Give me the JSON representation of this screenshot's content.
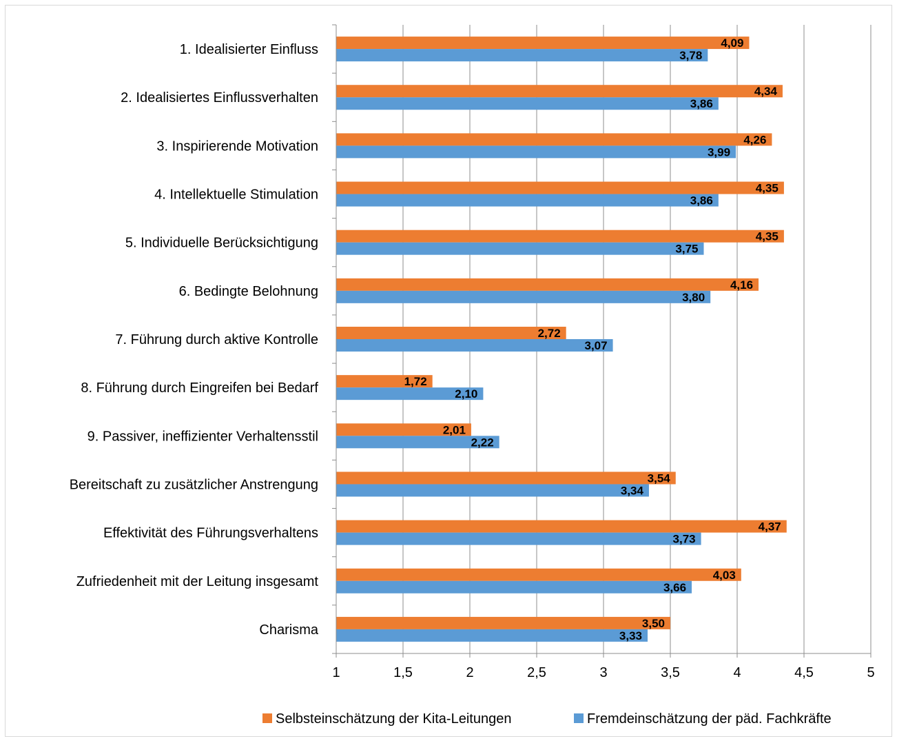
{
  "chart_data": {
    "type": "bar",
    "orientation": "horizontal",
    "categories": [
      "1. Idealisierter Einfluss",
      "2. Idealisiertes Einflussverhalten",
      "3. Inspirierende Motivation",
      "4. Intellektuelle Stimulation",
      "5. Individuelle Berücksichtigung",
      "6. Bedingte Belohnung",
      "7. Führung durch aktive Kontrolle",
      "8. Führung durch Eingreifen bei Bedarf",
      "9. Passiver, ineffizienter Verhaltensstil",
      "Bereitschaft zu zusätzlicher Anstrengung",
      "Effektivität des Führungsverhaltens",
      "Zufriedenheit mit der Leitung insgesamt",
      "Charisma"
    ],
    "series": [
      {
        "name": "Selbsteinschätzung der Kita-Leitungen",
        "color": "#ed7d31",
        "values": [
          4.09,
          4.34,
          4.26,
          4.35,
          4.35,
          4.16,
          2.72,
          1.72,
          2.01,
          3.54,
          4.37,
          4.03,
          3.5
        ],
        "labels": [
          "4,09",
          "4,34",
          "4,26",
          "4,35",
          "4,35",
          "4,16",
          "2,72",
          "1,72",
          "2,01",
          "3,54",
          "4,37",
          "4,03",
          "3,50"
        ]
      },
      {
        "name": "Fremdeinschätzung der päd. Fachkräfte",
        "color": "#5b9bd5",
        "values": [
          3.78,
          3.86,
          3.99,
          3.86,
          3.75,
          3.8,
          3.07,
          2.1,
          2.22,
          3.34,
          3.73,
          3.66,
          3.33
        ],
        "labels": [
          "3,78",
          "3,86",
          "3,99",
          "3,86",
          "3,75",
          "3,80",
          "3,07",
          "2,10",
          "2,22",
          "3,34",
          "3,73",
          "3,66",
          "3,33"
        ]
      }
    ],
    "xlim": [
      1,
      5
    ],
    "x_ticks": [
      1,
      1.5,
      2,
      2.5,
      3,
      3.5,
      4,
      4.5,
      5
    ],
    "x_tick_labels": [
      "1",
      "1,5",
      "2",
      "2,5",
      "3",
      "3,5",
      "4",
      "4,5",
      "5"
    ],
    "grid": "vertical",
    "legend_position": "bottom"
  }
}
